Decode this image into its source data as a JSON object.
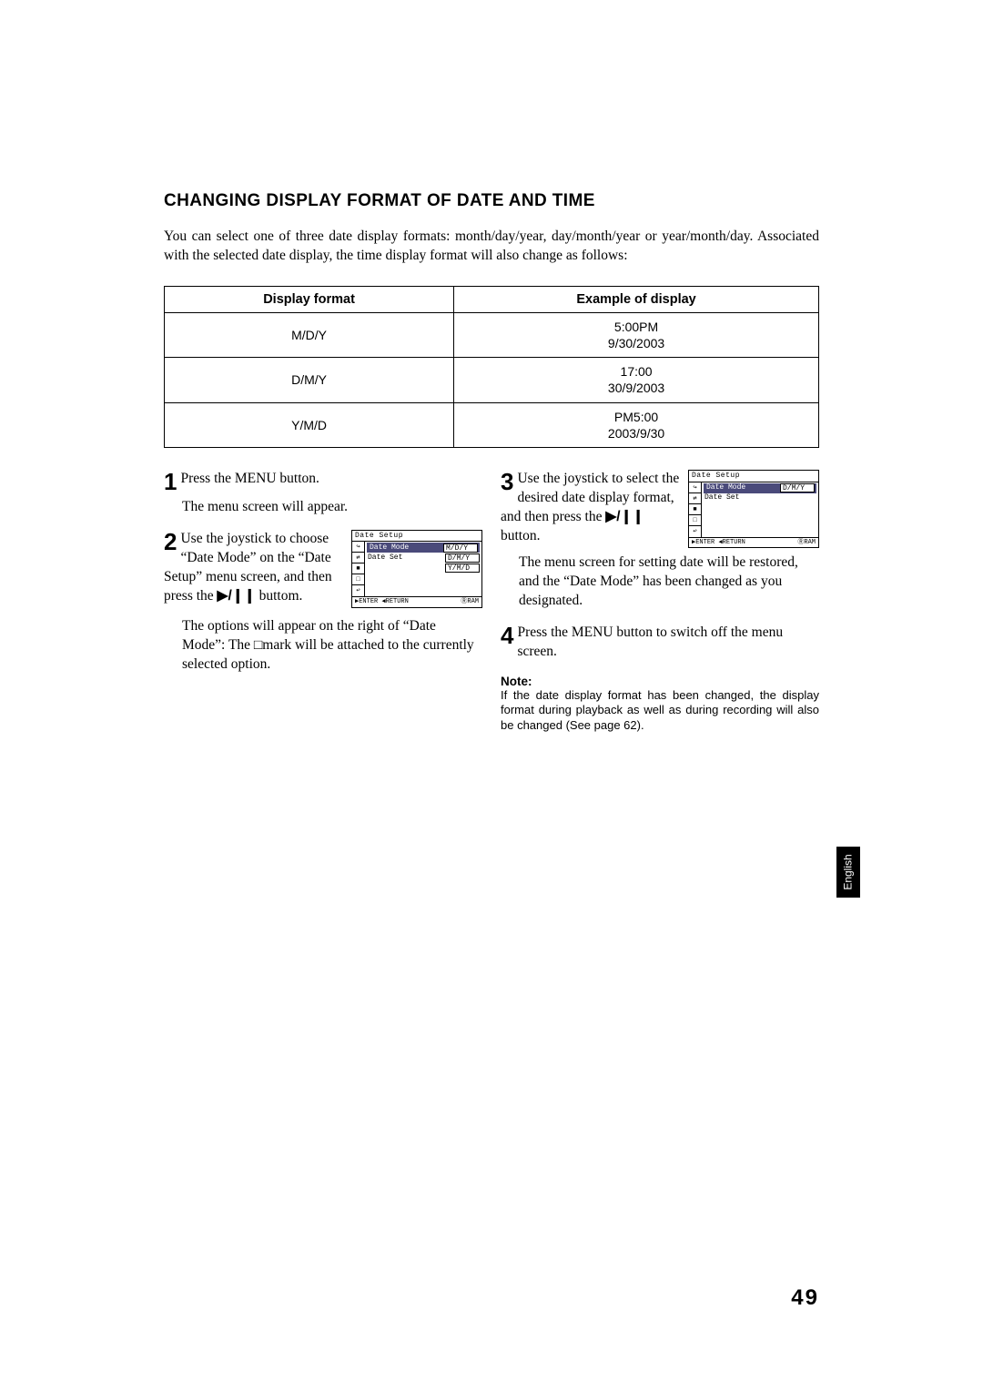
{
  "heading": "CHANGING DISPLAY FORMAT OF DATE AND TIME",
  "intro": "You can select one of three date display formats: month/day/year, day/month/year or year/month/day. Associated with the selected date display, the time display format will also change as follows:",
  "table": {
    "headers": [
      "Display format",
      "Example of display"
    ],
    "rows": [
      [
        "M/D/Y",
        "5:00PM\n9/30/2003"
      ],
      [
        "D/M/Y",
        "17:00\n30/9/2003"
      ],
      [
        "Y/M/D",
        "PM5:00\n2003/9/30"
      ]
    ]
  },
  "steps": {
    "s1": {
      "num": "1",
      "text": "Press the MENU button.",
      "after": "The menu screen will appear."
    },
    "s2": {
      "num": "2",
      "text_a": "Use the joystick to choose “Date Mode” on the “Date Setup” menu screen, and then press the ",
      "text_b": " buttom.",
      "after": "The options will appear on the right of “Date Mode”: The □mark will be attached to the currently selected option."
    },
    "s3": {
      "num": "3",
      "text_a": "Use the joystick to select the desired date display format, and then press the ",
      "text_b": " button.",
      "after": "The menu screen for setting date will be restored, and the “Date Mode” has been changed as you designated."
    },
    "s4": {
      "num": "4",
      "text": "Press the MENU button to switch off the menu screen."
    }
  },
  "playpause_glyph": "▶/❙❙",
  "lcd1": {
    "title": "Date Setup",
    "side": [
      "↪",
      "⇄",
      "■",
      "□",
      "↩"
    ],
    "rows": [
      {
        "label": "Date Mode",
        "val": "M/D/Y",
        "hl": true,
        "box": true
      },
      {
        "label": "Date Set",
        "val": "D/M/Y",
        "box": true
      },
      {
        "label": "",
        "val": "Y/M/D",
        "box": true
      }
    ],
    "footer_left": "▶ENTER ◀RETURN",
    "footer_right": "ⓇRAM"
  },
  "lcd2": {
    "title": "Date Setup",
    "side": [
      "↪",
      "⇄",
      "■",
      "□",
      "↩"
    ],
    "rows": [
      {
        "label": "Date Mode",
        "val": "D/M/Y",
        "hl": true,
        "box": true
      },
      {
        "label": "Date Set",
        "val": "",
        "box": false
      }
    ],
    "footer_left": "▶ENTER ◀RETURN",
    "footer_right": "ⓇRAM"
  },
  "note": {
    "heading": "Note:",
    "body": "If the date display format has been changed, the display format during playback as well as during recording will also be changed (See page 62)."
  },
  "lang_tab": "English",
  "page_number": "49"
}
